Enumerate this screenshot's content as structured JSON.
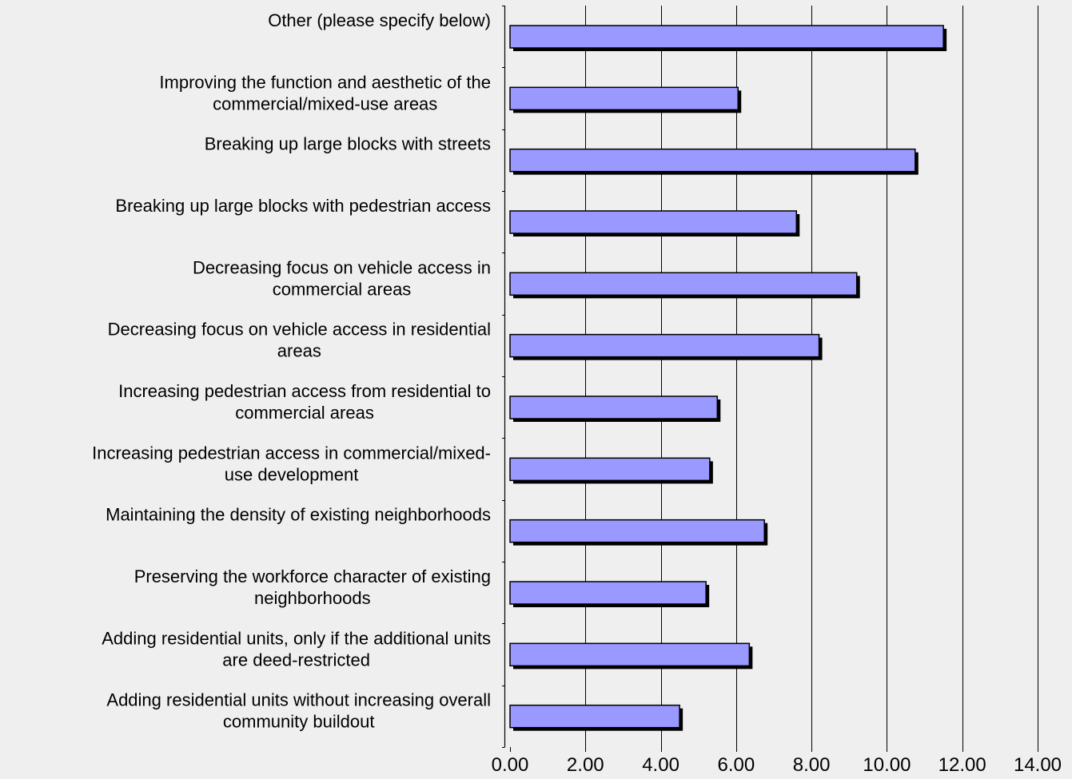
{
  "chart_data": {
    "type": "bar",
    "orientation": "horizontal",
    "categories": [
      "Other (please specify below)",
      "Improving the function and aesthetic of the commercial/mixed-use areas",
      "Breaking up large blocks with streets",
      "Breaking up large blocks with pedestrian access",
      "Decreasing focus on vehicle access in commercial areas",
      "Decreasing focus on vehicle access in residential areas",
      "Increasing pedestrian access from residential to commercial areas",
      "Increasing pedestrian access in commercial/mixed-use development",
      "Maintaining the density of existing neighborhoods",
      "Preserving the workforce character of existing neighborhoods",
      "Adding residential units, only if the additional units are deed-restricted",
      "Adding residential units without increasing overall community buildout"
    ],
    "category_label_lines": [
      [
        "Other (please specify below)"
      ],
      [
        "Improving the function and aesthetic of the",
        "commercial/mixed-use areas"
      ],
      [
        "Breaking up large blocks with streets"
      ],
      [
        "Breaking up large blocks with pedestrian access"
      ],
      [
        "Decreasing focus on vehicle access in",
        "commercial areas"
      ],
      [
        "Decreasing focus on vehicle access in residential",
        "areas"
      ],
      [
        "Increasing pedestrian access from residential to",
        "commercial areas"
      ],
      [
        "Increasing pedestrian access in commercial/mixed-",
        "use development"
      ],
      [
        "Maintaining the density of existing neighborhoods"
      ],
      [
        "Preserving the workforce character of existing",
        "neighborhoods"
      ],
      [
        "Adding residential units, only if the additional units",
        "are deed-restricted"
      ],
      [
        "Adding residential units without increasing overall",
        "community buildout"
      ]
    ],
    "values": [
      11.5,
      6.05,
      10.75,
      7.6,
      9.2,
      8.2,
      5.5,
      5.3,
      6.75,
      5.2,
      6.35,
      4.5
    ],
    "xlim": [
      0,
      14
    ],
    "x_ticks": [
      0,
      2,
      4,
      6,
      8,
      10,
      12,
      14
    ],
    "x_tick_labels": [
      "0.00",
      "2.00",
      "4.00",
      "6.00",
      "8.00",
      "10.00",
      "12.00",
      "14.00"
    ],
    "title": "",
    "xlabel": "",
    "ylabel": "",
    "grid": "vertical",
    "legend": "none",
    "colors": {
      "background": "#efefef",
      "bar_fill": "#9999ff",
      "bar_shadow": "#000000",
      "grid": "#000000",
      "text": "#000000"
    }
  }
}
